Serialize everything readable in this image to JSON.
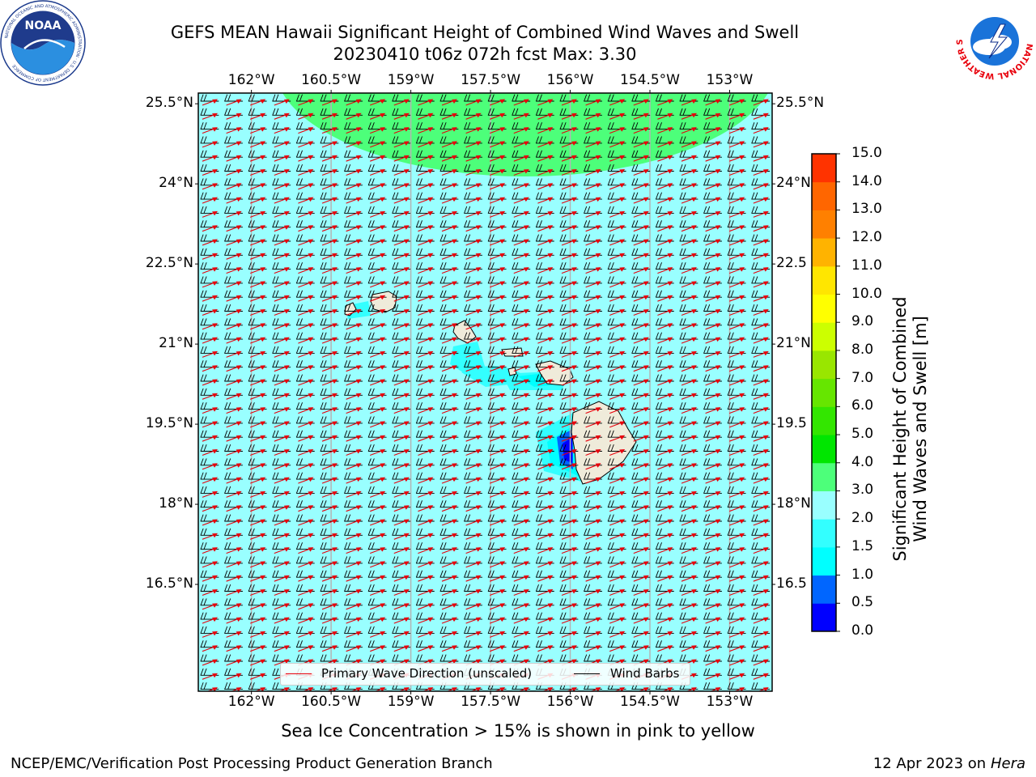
{
  "header": {
    "title_line1": "GEFS MEAN Hawaii Significant Height of Combined Wind Waves and Swell",
    "title_line2": "20230410 t06z 072h fcst   Max: 3.30"
  },
  "logos": {
    "noaa_text": "NOAA",
    "noaa_ring_text": "NATIONAL OCEANIC AND ATMOSPHERIC ADMINISTRATION · U.S. DEPARTMENT OF COMMERCE",
    "nws_ring_text": "NATIONAL WEATHER SERVICE"
  },
  "map": {
    "lon_ticks": [
      "162°W",
      "160.5°W",
      "159°W",
      "157.5°W",
      "156°W",
      "154.5°W",
      "153°W"
    ],
    "lat_ticks": [
      "25.5°N",
      "24°N",
      "22.5°N",
      "21°N",
      "19.5°N",
      "18°N",
      "16.5°N"
    ],
    "lat_ticks_right": [
      "25.5°N",
      "24°N",
      "22.5",
      "21°N",
      "19.5",
      "18°N",
      "16.5"
    ],
    "lon_range": [
      -163.0,
      -152.2
    ],
    "lat_range": [
      14.5,
      25.7
    ],
    "ocean_color": "#99ffff",
    "green_color": "#4dff7a",
    "land_color": "#efebda",
    "wave_arrow_color": "#e8000b",
    "barb_color": "#000000",
    "gridlines": true
  },
  "legend": {
    "wave_label": "Primary Wave Direction (unscaled)",
    "barb_label": "Wind Barbs",
    "placement": "lower-center"
  },
  "colorbar": {
    "label_line1": "Significant Height of Combined",
    "label_line2": "Wind Waves and Swell [m]",
    "levels": [
      "0.0",
      "0.5",
      "1.0",
      "1.5",
      "2.0",
      "3.0",
      "4.0",
      "5.0",
      "6.0",
      "7.0",
      "8.0",
      "9.0",
      "10.0",
      "11.0",
      "12.0",
      "13.0",
      "14.0",
      "15.0"
    ],
    "colors": [
      "#0000ff",
      "#0066ff",
      "#00ffff",
      "#33ffff",
      "#99ffff",
      "#4dff7a",
      "#00e600",
      "#33e600",
      "#66e600",
      "#99e600",
      "#ccff00",
      "#ffff00",
      "#ffe600",
      "#ffb300",
      "#ff8000",
      "#ff6600",
      "#ff3300"
    ]
  },
  "footer": {
    "ice_note": "Sea Ice Concentration > 15% is shown in pink to yellow",
    "left": "NCEP/EMC/Verification Post Processing Product Generation Branch",
    "right_prefix": "12 Apr 2023 on ",
    "right_host": "Hera"
  }
}
